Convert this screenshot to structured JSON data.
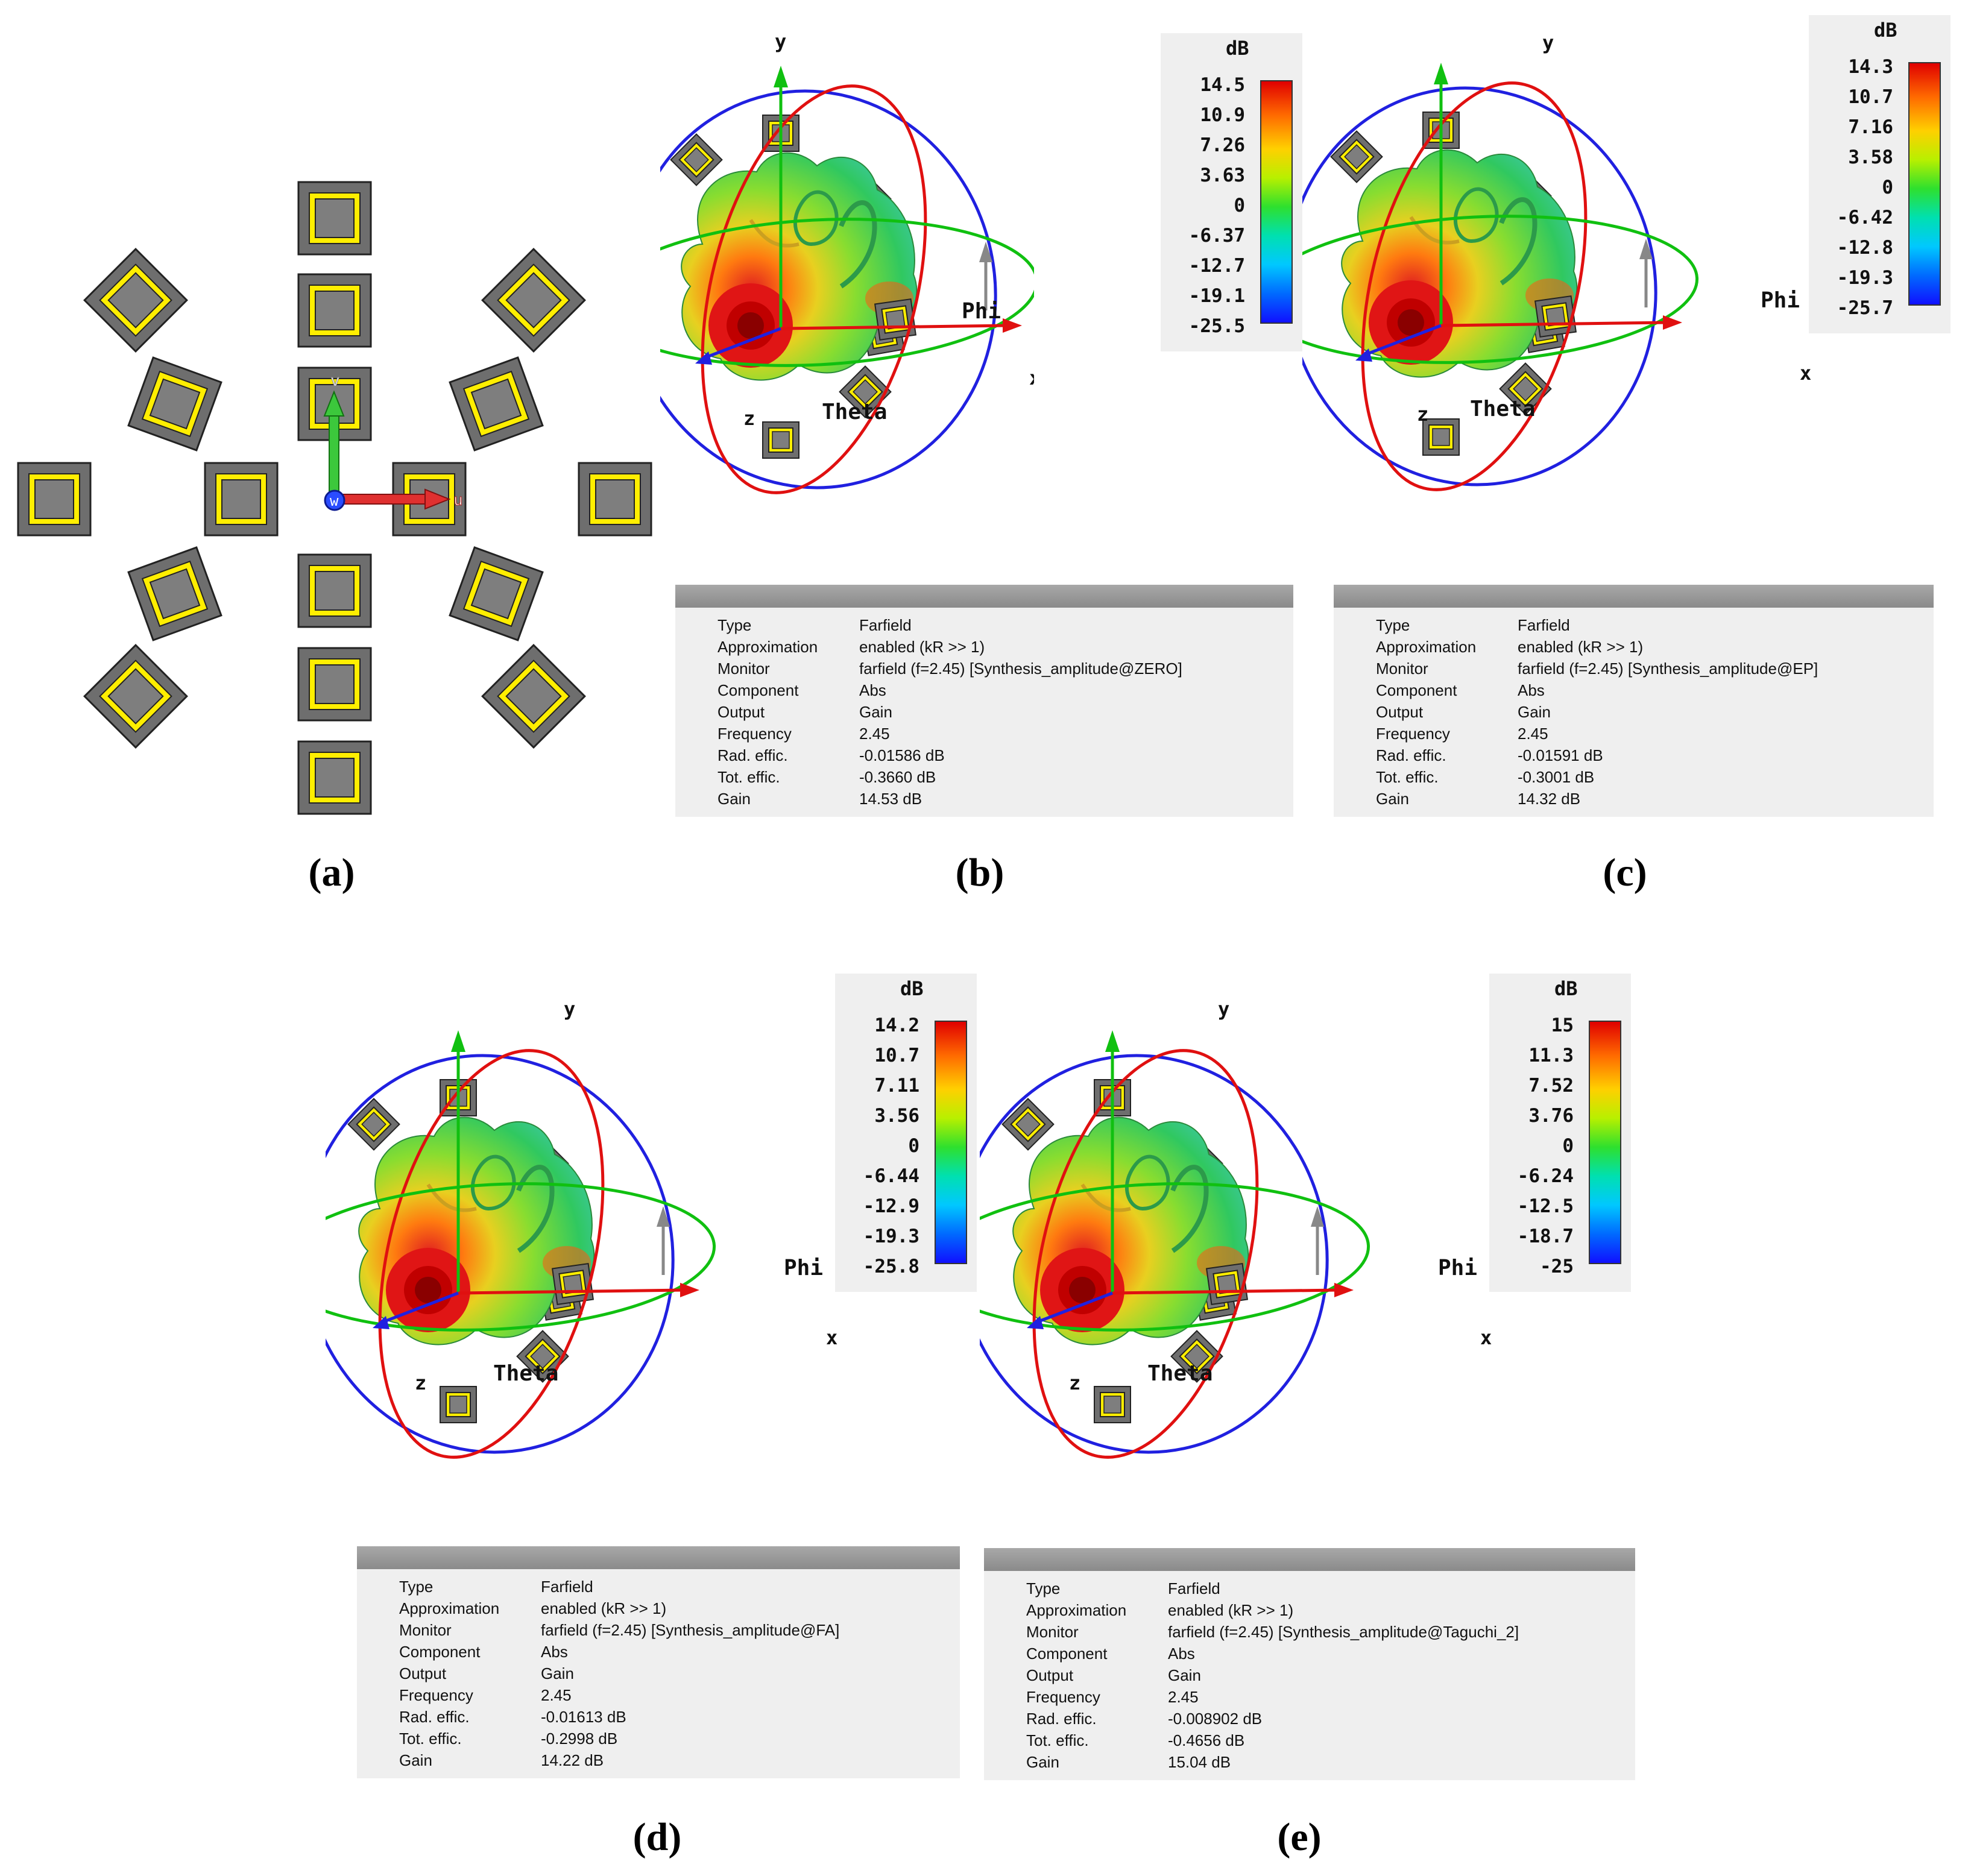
{
  "captions": [
    "(a)",
    "(b)",
    "(c)",
    "(d)",
    "(e)"
  ],
  "axis_labels": {
    "x": "x",
    "y": "y",
    "z": "z",
    "phi": "Phi",
    "theta": "Theta",
    "u": "u",
    "v": "v",
    "w": "w"
  },
  "scale_unit": "dB",
  "panels": [
    {
      "id": "b",
      "scale_ticks": [
        "14.5",
        "10.9",
        "7.26",
        "3.63",
        "0",
        "-6.37",
        "-12.7",
        "-19.1",
        "-25.5"
      ],
      "info": [
        [
          "Type",
          "Farfield"
        ],
        [
          "Approximation",
          "enabled (kR >> 1)"
        ],
        [
          "Monitor",
          "farfield (f=2.45) [Synthesis_amplitude@ZERO]"
        ],
        [
          "Component",
          "Abs"
        ],
        [
          "Output",
          "Gain"
        ],
        [
          "Frequency",
          "2.45"
        ],
        [
          "Rad. effic.",
          "-0.01586 dB"
        ],
        [
          "Tot. effic.",
          "-0.3660 dB"
        ],
        [
          "Gain",
          "14.53 dB"
        ]
      ]
    },
    {
      "id": "c",
      "scale_ticks": [
        "14.3",
        "10.7",
        "7.16",
        "3.58",
        "0",
        "-6.42",
        "-12.8",
        "-19.3",
        "-25.7"
      ],
      "info": [
        [
          "Type",
          "Farfield"
        ],
        [
          "Approximation",
          "enabled (kR >> 1)"
        ],
        [
          "Monitor",
          "farfield (f=2.45) [Synthesis_amplitude@EP]"
        ],
        [
          "Component",
          "Abs"
        ],
        [
          "Output",
          "Gain"
        ],
        [
          "Frequency",
          "2.45"
        ],
        [
          "Rad. effic.",
          "-0.01591 dB"
        ],
        [
          "Tot. effic.",
          "-0.3001 dB"
        ],
        [
          "Gain",
          "14.32 dB"
        ]
      ]
    },
    {
      "id": "d",
      "scale_ticks": [
        "14.2",
        "10.7",
        "7.11",
        "3.56",
        "0",
        "-6.44",
        "-12.9",
        "-19.3",
        "-25.8"
      ],
      "info": [
        [
          "Type",
          "Farfield"
        ],
        [
          "Approximation",
          "enabled (kR >> 1)"
        ],
        [
          "Monitor",
          "farfield (f=2.45) [Synthesis_amplitude@FA]"
        ],
        [
          "Component",
          "Abs"
        ],
        [
          "Output",
          "Gain"
        ],
        [
          "Frequency",
          "2.45"
        ],
        [
          "Rad. effic.",
          "-0.01613 dB"
        ],
        [
          "Tot. effic.",
          "-0.2998 dB"
        ],
        [
          "Gain",
          "14.22 dB"
        ]
      ]
    },
    {
      "id": "e",
      "scale_ticks": [
        "15",
        "11.3",
        "7.52",
        "3.76",
        "0",
        "-6.24",
        "-12.5",
        "-18.7",
        "-25"
      ],
      "info": [
        [
          "Type",
          "Farfield"
        ],
        [
          "Approximation",
          "enabled (kR >> 1)"
        ],
        [
          "Monitor",
          "farfield (f=2.45) [Synthesis_amplitude@Taguchi_2]"
        ],
        [
          "Component",
          "Abs"
        ],
        [
          "Output",
          "Gain"
        ],
        [
          "Frequency",
          "2.45"
        ],
        [
          "Rad. effic.",
          "-0.008902 dB"
        ],
        [
          "Tot. effic.",
          "-0.4656 dB"
        ],
        [
          "Gain",
          "15.04 dB"
        ]
      ]
    }
  ],
  "colors": {
    "patch_outer": "#7a7a7a",
    "patch_ring": "#ffee00",
    "ring_x": "#e01010",
    "ring_y": "#2020e0",
    "ring_z": "#10c010"
  }
}
